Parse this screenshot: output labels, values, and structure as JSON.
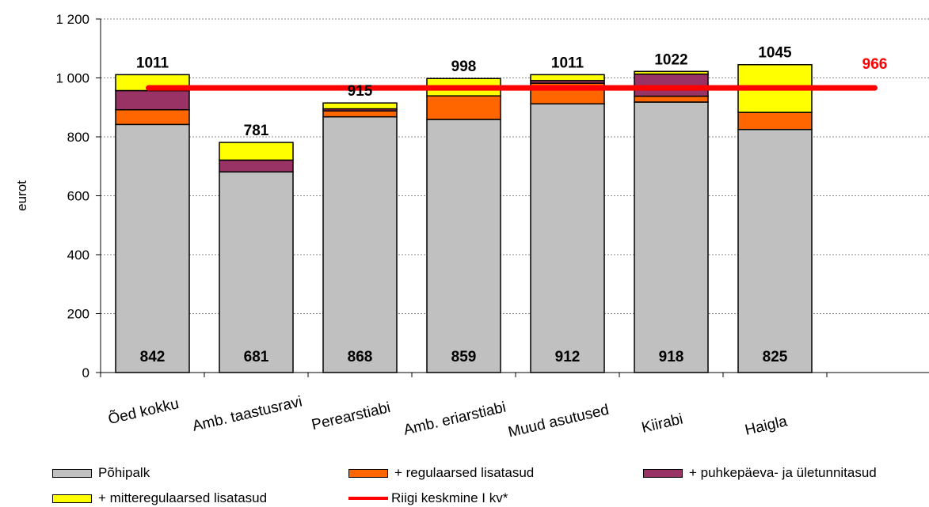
{
  "chart_data": {
    "type": "bar",
    "stacked": true,
    "ylabel": "eurot",
    "ylim": [
      0,
      1200
    ],
    "yticks": [
      {
        "value": 0,
        "label": "0"
      },
      {
        "value": 200,
        "label": "200"
      },
      {
        "value": 400,
        "label": "400"
      },
      {
        "value": 600,
        "label": "600"
      },
      {
        "value": 800,
        "label": "800"
      },
      {
        "value": 1000,
        "label": "1 000"
      },
      {
        "value": 1200,
        "label": "1 200"
      }
    ],
    "grid": true,
    "categories": [
      "Õed kokku",
      "Amb. taastusravi",
      "Perearstiabi",
      "Amb. eriarstiabi",
      "Muud asutused",
      "Kiirabi",
      "Haigla"
    ],
    "series": [
      {
        "name": "Põhipalk",
        "color": "#c0c0c0",
        "values": [
          842,
          681,
          868,
          859,
          912,
          918,
          825
        ]
      },
      {
        "name": "+ regulaarsed lisatasud",
        "color": "#ff6600",
        "values": [
          50,
          0,
          20,
          80,
          70,
          20,
          58
        ]
      },
      {
        "name": "+ puhkepäeva- ja ületunnitasud",
        "color": "#993366",
        "values": [
          65,
          40,
          7,
          0,
          9,
          75,
          0
        ]
      },
      {
        "name": "+ mitteregulaarsed lisatasud",
        "color": "#ffff00",
        "values": [
          54,
          60,
          20,
          59,
          20,
          9,
          162
        ]
      }
    ],
    "totals": [
      "1011",
      "781",
      "915",
      "998",
      "1011",
      "1022",
      "1045"
    ],
    "base_labels": [
      "842",
      "681",
      "868",
      "859",
      "912",
      "918",
      "825"
    ],
    "reference_line": {
      "name": "Riigi keskmine I kv*",
      "value": 966,
      "label": "966",
      "color": "#ff0000"
    },
    "legend_position": "bottom"
  }
}
